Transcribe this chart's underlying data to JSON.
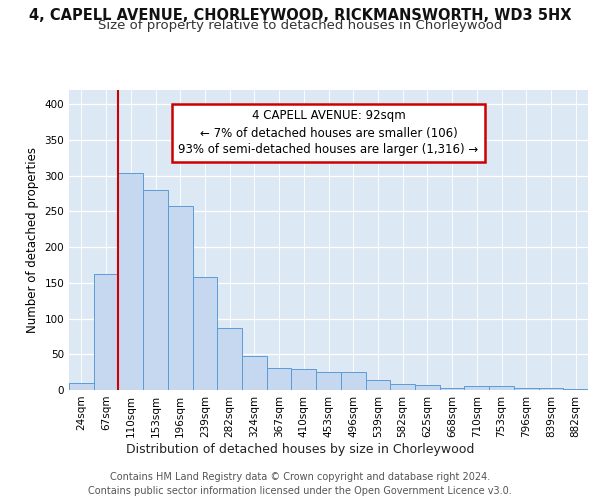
{
  "title_line1": "4, CAPELL AVENUE, CHORLEYWOOD, RICKMANSWORTH, WD3 5HX",
  "title_line2": "Size of property relative to detached houses in Chorleywood",
  "xlabel": "Distribution of detached houses by size in Chorleywood",
  "ylabel": "Number of detached properties",
  "categories": [
    "24sqm",
    "67sqm",
    "110sqm",
    "153sqm",
    "196sqm",
    "239sqm",
    "282sqm",
    "324sqm",
    "367sqm",
    "410sqm",
    "453sqm",
    "496sqm",
    "539sqm",
    "582sqm",
    "625sqm",
    "668sqm",
    "710sqm",
    "753sqm",
    "796sqm",
    "839sqm",
    "882sqm"
  ],
  "values": [
    10,
    163,
    304,
    280,
    258,
    158,
    87,
    47,
    31,
    30,
    25,
    25,
    14,
    9,
    7,
    3,
    5,
    5,
    3,
    3,
    1
  ],
  "bar_color": "#c5d8f0",
  "bar_edge_color": "#5b9bd5",
  "vline_color": "#cc0000",
  "vline_x_index": 2,
  "annotation_text": "4 CAPELL AVENUE: 92sqm\n← 7% of detached houses are smaller (106)\n93% of semi-detached houses are larger (1,316) →",
  "annotation_box_facecolor": "#ffffff",
  "annotation_box_edgecolor": "#cc0000",
  "ylim": [
    0,
    420
  ],
  "yticks": [
    0,
    50,
    100,
    150,
    200,
    250,
    300,
    350,
    400
  ],
  "fig_bg_color": "#ffffff",
  "plot_bg_color": "#dce9f5",
  "grid_color": "#ffffff",
  "title_fontsize": 10.5,
  "subtitle_fontsize": 9.5,
  "tick_fontsize": 7.5,
  "ylabel_fontsize": 8.5,
  "xlabel_fontsize": 9,
  "footer_fontsize": 7,
  "annotation_fontsize": 8.5,
  "footer": "Contains HM Land Registry data © Crown copyright and database right 2024.\nContains public sector information licensed under the Open Government Licence v3.0."
}
